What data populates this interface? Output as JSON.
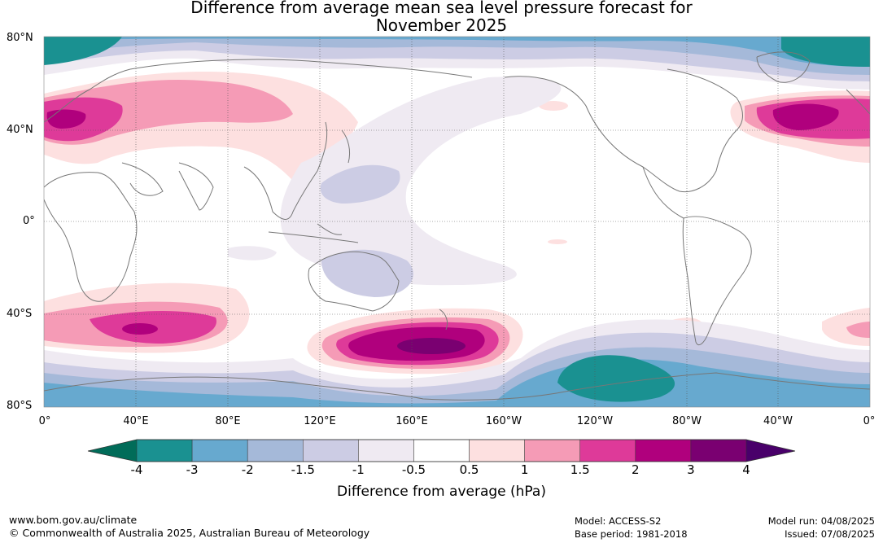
{
  "header": {
    "title_line1": "Difference from average mean sea level pressure forecast for",
    "title_line2": "November 2025"
  },
  "axes": {
    "lat_labels": [
      "80°N",
      "40°N",
      "0°",
      "40°S",
      "80°S"
    ],
    "lon_labels": [
      "0°",
      "40°E",
      "80°E",
      "120°E",
      "160°E",
      "160°W",
      "120°W",
      "80°W",
      "40°W",
      "0°"
    ]
  },
  "colorbar": {
    "label": "Difference from average (hPa)",
    "ticks": [
      "-4",
      "-3",
      "-2",
      "-1.5",
      "-1",
      "-0.5",
      "0.5",
      "1",
      "1.5",
      "2",
      "3",
      "4"
    ],
    "colors": [
      "#1a9191",
      "#67a9cf",
      "#a5b9d9",
      "#cccce4",
      "#efeaf2",
      "#ffffff",
      "#fde0e0",
      "#f59bb6",
      "#de3a99",
      "#b0007d",
      "#7a0071"
    ],
    "under_color": "#016c59",
    "over_color": "#49006a"
  },
  "map": {
    "ocean_color": "#ffffff",
    "coast_color": "#777777",
    "grid": "dotted"
  },
  "footer": {
    "url": "www.bom.gov.au/climate",
    "copyright": "© Commonwealth of Australia 2025, Australian Bureau of Meteorology",
    "model": "Model: ACCESS-S2",
    "base_period": "Base period: 1981-2018",
    "model_run": "Model run: 04/08/2025",
    "issued": "Issued: 07/08/2025"
  }
}
